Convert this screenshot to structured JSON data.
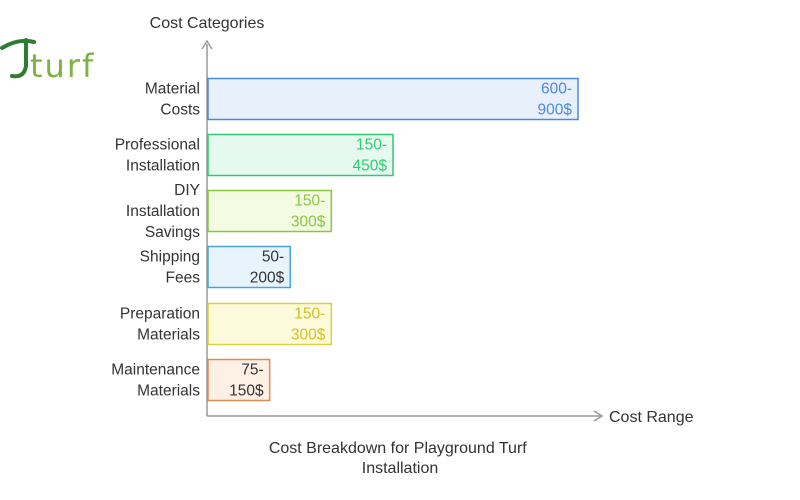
{
  "logo": {
    "text": "turf",
    "color": "#7cb342",
    "swoosh_color": "#2e7d32"
  },
  "chart_data": {
    "type": "bar",
    "orientation": "horizontal",
    "title": "Cost Breakdown for Playground Turf Installation",
    "xlabel": "Cost Range",
    "ylabel": "Cost Categories",
    "xlim": [
      0,
      900
    ],
    "grid": false,
    "categories": [
      "Material Costs",
      "Professional Installation",
      "DIY Installation Savings",
      "Shipping Fees",
      "Preparation Materials",
      "Maintenance Materials"
    ],
    "series": [
      {
        "ranges": [
          [
            600,
            900
          ],
          [
            150,
            450
          ],
          [
            150,
            300
          ],
          [
            50,
            200
          ],
          [
            150,
            300
          ],
          [
            75,
            150
          ]
        ],
        "values": [
          900,
          450,
          300,
          200,
          300,
          150
        ],
        "labels": [
          "600-900$",
          "150-450$",
          "150-300$",
          "50-200$",
          "150-300$",
          "75-150$"
        ]
      }
    ],
    "colors": [
      {
        "fill": "#e8f0fc",
        "stroke": "#4a89dc",
        "text": "#4a89dc"
      },
      {
        "fill": "#e6f9ef",
        "stroke": "#2ecc71",
        "text": "#2ecc71"
      },
      {
        "fill": "#f3fbe3",
        "stroke": "#8cc63f",
        "text": "#8cc63f"
      },
      {
        "fill": "#e8f4fb",
        "stroke": "#4aa3df",
        "text": "#333333"
      },
      {
        "fill": "#fefbdc",
        "stroke": "#e0cf3a",
        "text": "#d4c020"
      },
      {
        "fill": "#fdf0e4",
        "stroke": "#e08a4f",
        "text": "#333333"
      }
    ]
  }
}
